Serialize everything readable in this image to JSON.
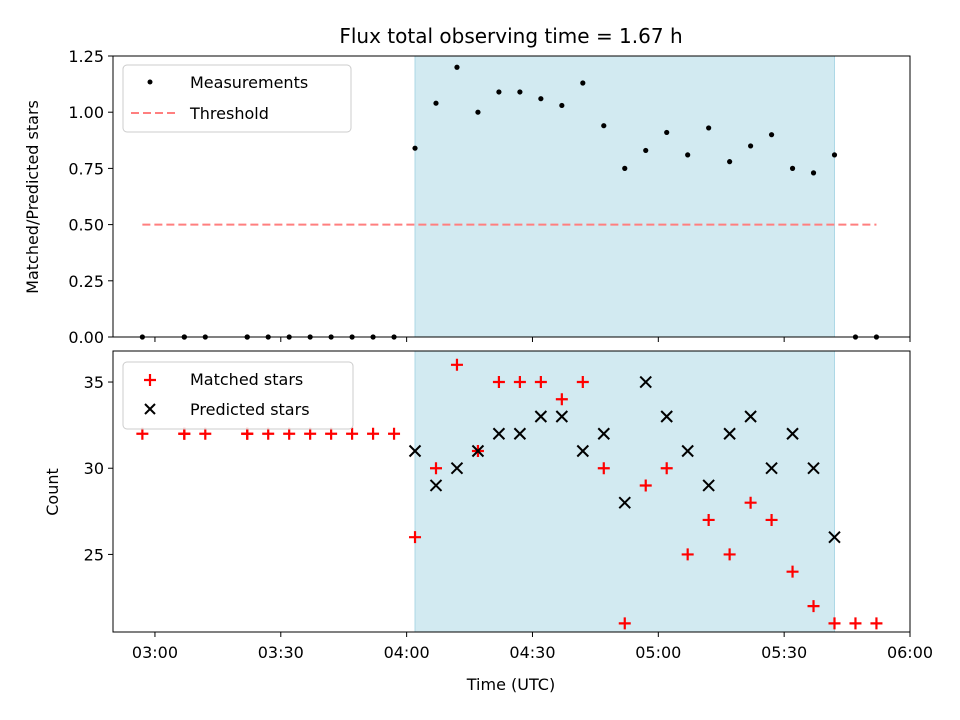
{
  "chart_data": [
    {
      "type": "scatter",
      "title": "Flux total observing time = 1.67 h",
      "ylabel": "Matched/Predicted stars",
      "xlabel": "",
      "xlim": [
        "02:50",
        "06:00"
      ],
      "ylim": [
        0,
        1.25
      ],
      "yticks": [
        "0.00",
        "0.25",
        "0.50",
        "0.75",
        "1.00",
        "1.25"
      ],
      "shaded_span": {
        "x": [
          "04:02",
          "05:42"
        ],
        "color": "#add8e6"
      },
      "legend": {
        "placement": "top-left",
        "entries": [
          "Measurements",
          "Threshold"
        ]
      },
      "series": [
        {
          "name": "Measurements",
          "marker": "dot",
          "color": "#000000",
          "x": [
            "02:57",
            "03:07",
            "03:07",
            "03:12",
            "03:22",
            "03:22",
            "03:27",
            "03:32",
            "03:37",
            "03:42",
            "03:47",
            "03:52",
            "03:57",
            "04:02",
            "04:07",
            "04:12",
            "04:17",
            "04:22",
            "04:27",
            "04:32",
            "04:37",
            "04:42",
            "04:47",
            "04:52",
            "04:57",
            "05:02",
            "05:07",
            "05:12",
            "05:17",
            "05:22",
            "05:27",
            "05:32",
            "05:37",
            "05:42",
            "05:47",
            "05:52"
          ],
          "y": [
            0,
            0,
            0,
            0,
            0,
            0,
            0,
            0,
            0,
            0,
            0,
            0,
            0,
            0.84,
            1.04,
            1.2,
            1.0,
            1.09,
            1.09,
            1.06,
            1.03,
            1.13,
            0.94,
            0.75,
            0.83,
            0.91,
            0.81,
            0.93,
            0.78,
            0.85,
            0.9,
            0.75,
            0.73,
            0.81,
            0,
            0
          ]
        },
        {
          "name": "Threshold",
          "style": "dashed",
          "color": "#ff7f7f",
          "x": [
            "02:57",
            "05:52"
          ],
          "y": [
            0.5,
            0.5
          ]
        }
      ]
    },
    {
      "type": "scatter",
      "xlabel": "Time (UTC)",
      "ylabel": "Count",
      "xlim": [
        "02:50",
        "06:00"
      ],
      "ylim": [
        20.5,
        36.8
      ],
      "xticks": [
        "03:00",
        "03:30",
        "04:00",
        "04:30",
        "05:00",
        "05:30",
        "06:00"
      ],
      "yticks": [
        "25",
        "30",
        "35"
      ],
      "shaded_span": {
        "x": [
          "04:02",
          "05:42"
        ],
        "color": "#add8e6"
      },
      "legend": {
        "placement": "top-left",
        "entries": [
          "Matched stars",
          "Predicted stars"
        ]
      },
      "series": [
        {
          "name": "Matched stars",
          "marker": "plus",
          "color": "#ff0000",
          "x": [
            "02:57",
            "03:07",
            "03:07",
            "03:12",
            "03:22",
            "03:22",
            "03:27",
            "03:32",
            "03:37",
            "03:42",
            "03:47",
            "03:52",
            "03:57",
            "04:02",
            "04:07",
            "04:12",
            "04:17",
            "04:22",
            "04:27",
            "04:32",
            "04:37",
            "04:42",
            "04:47",
            "04:52",
            "04:57",
            "05:02",
            "05:07",
            "05:12",
            "05:17",
            "05:22",
            "05:27",
            "05:32",
            "05:37",
            "05:42",
            "05:47",
            "05:52"
          ],
          "y": [
            32,
            32,
            32,
            32,
            32,
            32,
            32,
            32,
            32,
            32,
            32,
            32,
            32,
            26,
            30,
            36,
            31,
            35,
            35,
            35,
            34,
            35,
            30,
            21,
            29,
            30,
            25,
            27,
            25,
            28,
            27,
            24,
            22,
            21,
            21,
            21
          ]
        },
        {
          "name": "Predicted stars",
          "marker": "x",
          "color": "#000000",
          "x": [
            "04:02",
            "04:07",
            "04:12",
            "04:17",
            "04:22",
            "04:27",
            "04:32",
            "04:37",
            "04:42",
            "04:47",
            "04:52",
            "04:57",
            "05:02",
            "05:07",
            "05:12",
            "05:17",
            "05:22",
            "05:27",
            "05:32",
            "05:37",
            "05:42"
          ],
          "y": [
            31,
            29,
            30,
            31,
            32,
            32,
            33,
            33,
            31,
            32,
            28,
            35,
            33,
            31,
            29,
            32,
            33,
            30,
            32,
            30,
            26
          ]
        }
      ]
    }
  ]
}
